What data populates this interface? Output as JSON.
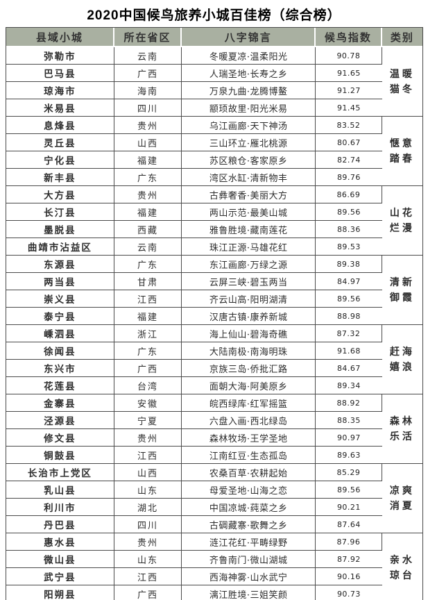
{
  "title": "2020中国候鸟旅养小城百佳榜（综合榜）",
  "colors": {
    "header_bg": "#a9b0a1",
    "border": "#4a4a4a"
  },
  "table": {
    "headers": [
      "县域小城",
      "所在省区",
      "八字锦言",
      "候鸟指数",
      "类别"
    ],
    "categories": [
      {
        "label": "温暖猫冬",
        "span": 4
      },
      {
        "label": "惬意踏春",
        "span": 4
      },
      {
        "label": "山花烂漫",
        "span": 4
      },
      {
        "label": "清新御霞",
        "span": 4
      },
      {
        "label": "赶海嬉浪",
        "span": 4
      },
      {
        "label": "森林乐活",
        "span": 4
      },
      {
        "label": "凉爽消夏",
        "span": 4
      },
      {
        "label": "亲水琼台",
        "span": 4
      }
    ],
    "rows": [
      {
        "city": "弥勒市",
        "province": "云南",
        "motto": "冬暖夏凉·温柔阳光",
        "index": "90.78"
      },
      {
        "city": "巴马县",
        "province": "广西",
        "motto": "人瑞圣地·长寿之乡",
        "index": "91.65"
      },
      {
        "city": "琼海市",
        "province": "海南",
        "motto": "万泉九曲·龙腾博鳌",
        "index": "91.27"
      },
      {
        "city": "米易县",
        "province": "四川",
        "motto": "颛顼故里·阳光米易",
        "index": "91.45"
      },
      {
        "city": "息烽县",
        "province": "贵州",
        "motto": "乌江画廊·天下神汤",
        "index": "83.52"
      },
      {
        "city": "灵丘县",
        "province": "山西",
        "motto": "三山环立·雁北桃源",
        "index": "80.67"
      },
      {
        "city": "宁化县",
        "province": "福建",
        "motto": "苏区粮仓·客家原乡",
        "index": "82.74"
      },
      {
        "city": "新丰县",
        "province": "广东",
        "motto": "湾区水缸·清新物丰",
        "index": "89.76"
      },
      {
        "city": "大方县",
        "province": "贵州",
        "motto": "古彝奢香·美丽大方",
        "index": "86.69"
      },
      {
        "city": "长汀县",
        "province": "福建",
        "motto": "两山示范·最美山城",
        "index": "89.56"
      },
      {
        "city": "墨脱县",
        "province": "西藏",
        "motto": "雅鲁胜境·藏南莲花",
        "index": "88.36"
      },
      {
        "city": "曲靖市沾益区",
        "province": "云南",
        "motto": "珠江正源·马雄花红",
        "index": "89.53"
      },
      {
        "city": "东源县",
        "province": "广东",
        "motto": "东江画廊·万绿之源",
        "index": "89.38"
      },
      {
        "city": "两当县",
        "province": "甘肃",
        "motto": "云屏三峡·碧玉两当",
        "index": "84.97"
      },
      {
        "city": "崇义县",
        "province": "江西",
        "motto": "齐云山高·阳明湖清",
        "index": "89.56"
      },
      {
        "city": "泰宁县",
        "province": "福建",
        "motto": "汉唐古镇·康养新城",
        "index": "88.98"
      },
      {
        "city": "嵊泗县",
        "province": "浙江",
        "motto": "海上仙山·碧海奇礁",
        "index": "87.32"
      },
      {
        "city": "徐闻县",
        "province": "广东",
        "motto": "大陆南极·南海明珠",
        "index": "91.68"
      },
      {
        "city": "东兴市",
        "province": "广西",
        "motto": "京族三岛·侨批汇路",
        "index": "84.67"
      },
      {
        "city": "花莲县",
        "province": "台湾",
        "motto": "面朝大海·阿美原乡",
        "index": "89.34"
      },
      {
        "city": "金寨县",
        "province": "安徽",
        "motto": "皖西绿库·红军摇篮",
        "index": "88.92"
      },
      {
        "city": "泾源县",
        "province": "宁夏",
        "motto": "六盘入画·西北绿岛",
        "index": "88.35"
      },
      {
        "city": "修文县",
        "province": "贵州",
        "motto": "森林牧场·王学圣地",
        "index": "90.97"
      },
      {
        "city": "铜鼓县",
        "province": "江西",
        "motto": "江南红豆·生态孤岛",
        "index": "89.63"
      },
      {
        "city": "长治市上党区",
        "province": "山西",
        "motto": "农桑百草·农耕起始",
        "index": "85.29"
      },
      {
        "city": "乳山县",
        "province": "山东",
        "motto": "母爱圣地·山海之恋",
        "index": "89.56"
      },
      {
        "city": "利川市",
        "province": "湖北",
        "motto": "中国凉城·莼菜之乡",
        "index": "90.21"
      },
      {
        "city": "丹巴县",
        "province": "四川",
        "motto": "古碉藏寨·歌舞之乡",
        "index": "87.64"
      },
      {
        "city": "惠水县",
        "province": "贵州",
        "motto": "涟江花红·平畴绿野",
        "index": "87.96"
      },
      {
        "city": "微山县",
        "province": "山东",
        "motto": "齐鲁南门·微山湖城",
        "index": "87.92"
      },
      {
        "city": "武宁县",
        "province": "江西",
        "motto": "西海神雾·山水武宁",
        "index": "90.16"
      },
      {
        "city": "阳朔县",
        "province": "广西",
        "motto": "漓江胜境·三姐笑颜",
        "index": "90.73"
      }
    ]
  }
}
